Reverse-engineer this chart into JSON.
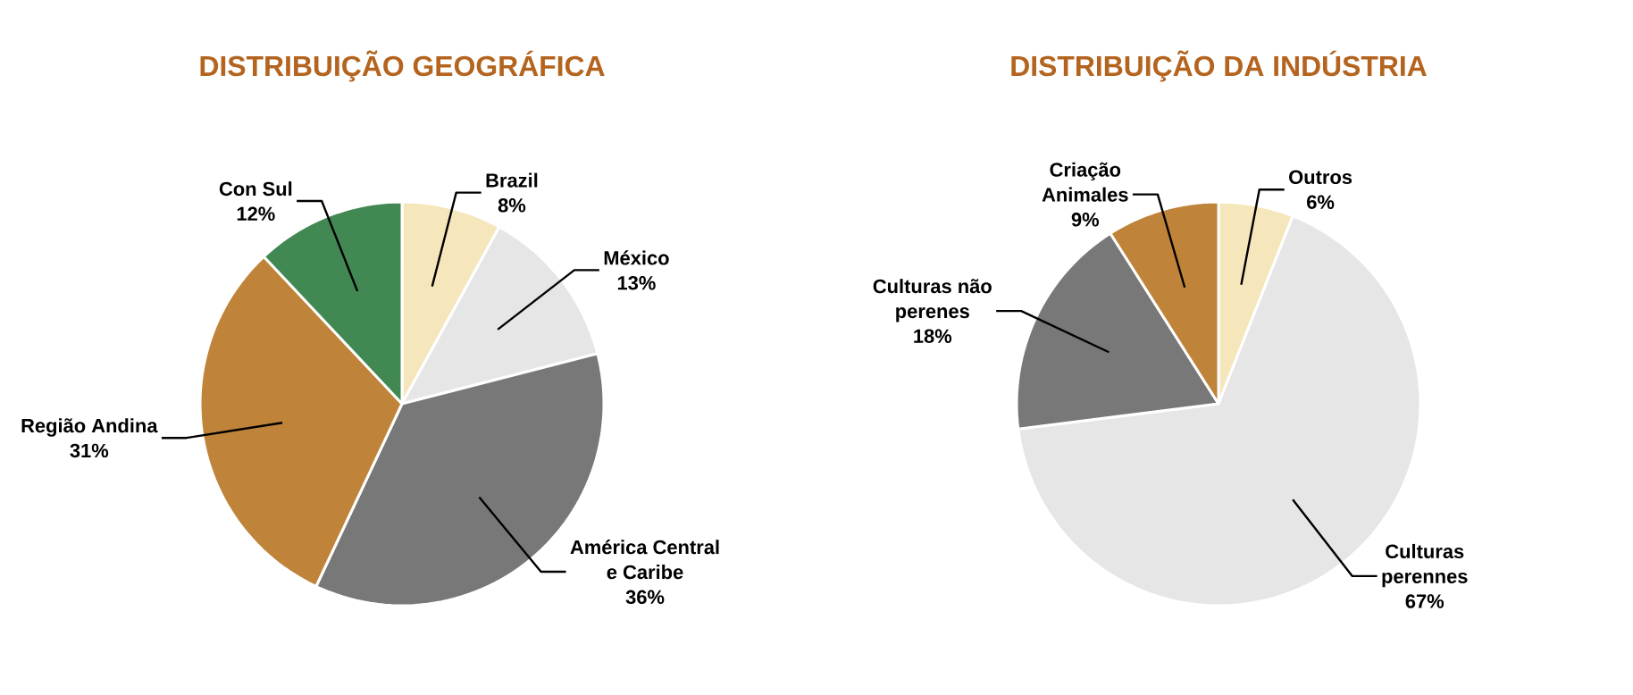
{
  "chart_data": [
    {
      "type": "pie",
      "title": "DISTRIBUIÇÃO GEOGRÁFICA",
      "categories": [
        "Brazil",
        "México",
        "América Central e Caribe",
        "Região Andina",
        "Con Sul"
      ],
      "values": [
        8,
        13,
        36,
        31,
        12
      ],
      "value_labels": [
        "8%",
        "13%",
        "36%",
        "31%",
        "12%"
      ],
      "colors": [
        "#f5e6bc",
        "#e6e6e6",
        "#787878",
        "#bf8339",
        "#418852"
      ]
    },
    {
      "type": "pie",
      "title": "DISTRIBUIÇÃO DA INDÚSTRIA",
      "categories": [
        "Outros",
        "Culturas perennes",
        "Culturas não perenes",
        "Criação Animales"
      ],
      "values": [
        6,
        67,
        18,
        9
      ],
      "value_labels": [
        "6%",
        "67%",
        "18%",
        "9%"
      ],
      "colors": [
        "#f5e6bc",
        "#e6e6e6",
        "#787878",
        "#bf8339"
      ]
    }
  ]
}
